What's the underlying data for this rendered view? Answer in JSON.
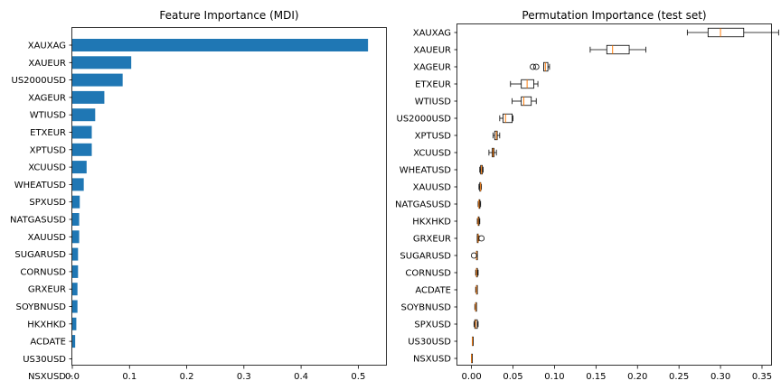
{
  "chart_data": [
    {
      "type": "bar",
      "orientation": "horizontal",
      "title": "Feature Importance (MDI)",
      "xlabel": "",
      "ylabel": "",
      "xlim": [
        0,
        0.55
      ],
      "xticks": [
        0.0,
        0.1,
        0.2,
        0.3,
        0.4,
        0.5
      ],
      "xtick_labels": [
        "0.0",
        "0.1",
        "0.2",
        "0.3",
        "0.4",
        "0.5"
      ],
      "categories": [
        "XAUXAG",
        "XAUEUR",
        "US2000USD",
        "XAGEUR",
        "WTIUSD",
        "ETXEUR",
        "XPTUSD",
        "XCUUSD",
        "WHEATUSD",
        "SPXUSD",
        "NATGASUSD",
        "XAUUSD",
        "SUGARUSD",
        "CORNUSD",
        "GRXEUR",
        "SOYBNUSD",
        "HKXHKD",
        "ACDATE",
        "US30USD",
        "NSXUSD"
      ],
      "values": [
        0.517,
        0.103,
        0.088,
        0.056,
        0.04,
        0.034,
        0.034,
        0.025,
        0.02,
        0.013,
        0.012,
        0.012,
        0.01,
        0.01,
        0.009,
        0.009,
        0.007,
        0.005,
        0.0,
        0.0
      ],
      "bar_color": "#1f77b4",
      "grid": false
    },
    {
      "type": "boxplot",
      "orientation": "horizontal",
      "title": "Permutation Importance (test set)",
      "xlabel": "",
      "ylabel": "",
      "xlim": [
        -0.017,
        0.362
      ],
      "xticks": [
        0.0,
        0.05,
        0.1,
        0.15,
        0.2,
        0.25,
        0.3,
        0.35
      ],
      "xtick_labels": [
        "0.00",
        "0.05",
        "0.10",
        "0.15",
        "0.20",
        "0.25",
        "0.30",
        "0.35"
      ],
      "categories": [
        "XAUXAG",
        "XAUEUR",
        "XAGEUR",
        "ETXEUR",
        "WTIUSD",
        "US2000USD",
        "XPTUSD",
        "XCUUSD",
        "WHEATUSD",
        "XAUUSD",
        "NATGASUSD",
        "HKXHKD",
        "GRXEUR",
        "SUGARUSD",
        "CORNUSD",
        "ACDATE",
        "SOYBNUSD",
        "SPXUSD",
        "US30USD",
        "NSXUSD"
      ],
      "boxes": [
        {
          "whislo": 0.26,
          "q1": 0.285,
          "med": 0.3,
          "q3": 0.328,
          "whishi": 0.37,
          "fliers": []
        },
        {
          "whislo": 0.143,
          "q1": 0.163,
          "med": 0.17,
          "q3": 0.19,
          "whishi": 0.21,
          "fliers": []
        },
        {
          "whislo": 0.087,
          "q1": 0.087,
          "med": 0.089,
          "q3": 0.092,
          "whishi": 0.094,
          "fliers": [
            0.074,
            0.078
          ]
        },
        {
          "whislo": 0.047,
          "q1": 0.06,
          "med": 0.067,
          "q3": 0.075,
          "whishi": 0.08,
          "fliers": []
        },
        {
          "whislo": 0.049,
          "q1": 0.06,
          "med": 0.063,
          "q3": 0.072,
          "whishi": 0.078,
          "fliers": []
        },
        {
          "whislo": 0.034,
          "q1": 0.038,
          "med": 0.041,
          "q3": 0.049,
          "whishi": 0.05,
          "fliers": []
        },
        {
          "whislo": 0.026,
          "q1": 0.028,
          "med": 0.03,
          "q3": 0.031,
          "whishi": 0.034,
          "fliers": []
        },
        {
          "whislo": 0.021,
          "q1": 0.025,
          "med": 0.026,
          "q3": 0.027,
          "whishi": 0.03,
          "fliers": []
        },
        {
          "whislo": 0.01,
          "q1": 0.011,
          "med": 0.012,
          "q3": 0.013,
          "whishi": 0.014,
          "fliers": []
        },
        {
          "whislo": 0.009,
          "q1": 0.01,
          "med": 0.011,
          "q3": 0.011,
          "whishi": 0.012,
          "fliers": []
        },
        {
          "whislo": 0.008,
          "q1": 0.009,
          "med": 0.009,
          "q3": 0.01,
          "whishi": 0.011,
          "fliers": []
        },
        {
          "whislo": 0.007,
          "q1": 0.008,
          "med": 0.008,
          "q3": 0.009,
          "whishi": 0.01,
          "fliers": []
        },
        {
          "whislo": 0.007,
          "q1": 0.007,
          "med": 0.008,
          "q3": 0.008,
          "whishi": 0.009,
          "fliers": [
            0.012
          ]
        },
        {
          "whislo": 0.006,
          "q1": 0.006,
          "med": 0.006,
          "q3": 0.007,
          "whishi": 0.007,
          "fliers": [
            0.003
          ]
        },
        {
          "whislo": 0.005,
          "q1": 0.006,
          "med": 0.006,
          "q3": 0.007,
          "whishi": 0.008,
          "fliers": []
        },
        {
          "whislo": 0.005,
          "q1": 0.006,
          "med": 0.006,
          "q3": 0.007,
          "whishi": 0.007,
          "fliers": []
        },
        {
          "whislo": 0.004,
          "q1": 0.005,
          "med": 0.005,
          "q3": 0.006,
          "whishi": 0.006,
          "fliers": []
        },
        {
          "whislo": 0.003,
          "q1": 0.004,
          "med": 0.005,
          "q3": 0.007,
          "whishi": 0.008,
          "fliers": []
        },
        {
          "whislo": 0.001,
          "q1": 0.001,
          "med": 0.001,
          "q3": 0.002,
          "whishi": 0.002,
          "fliers": []
        },
        {
          "whislo": 0.0,
          "q1": 0.0,
          "med": 0.0,
          "q3": 0.0,
          "whishi": 0.0,
          "fliers": []
        }
      ],
      "box_color": "#000000",
      "median_color": "#ff7f0e",
      "grid": false
    }
  ]
}
